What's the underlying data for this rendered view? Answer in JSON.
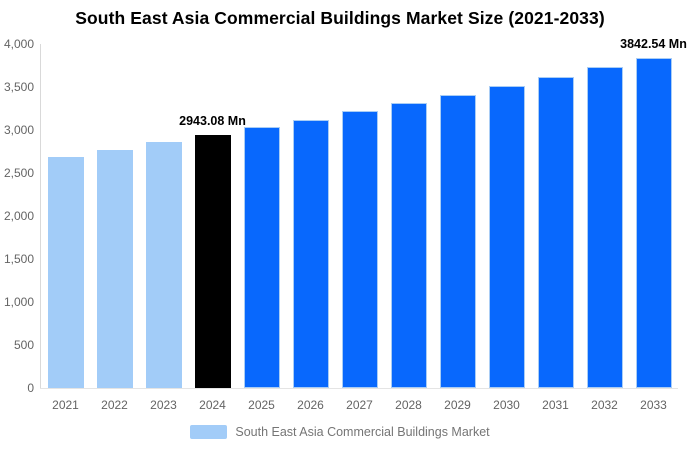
{
  "chart_data": {
    "type": "bar",
    "title": "South East Asia Commercial Buildings Market Size (2021-2033)",
    "categories": [
      "2021",
      "2022",
      "2023",
      "2024",
      "2025",
      "2026",
      "2027",
      "2028",
      "2029",
      "2030",
      "2031",
      "2032",
      "2033"
    ],
    "values": [
      2690,
      2772,
      2856,
      2943.08,
      3031,
      3122,
      3216,
      3312,
      3412,
      3514,
      3620,
      3729,
      3842.54
    ],
    "point_labels": [
      null,
      null,
      null,
      "2943.08 Mn",
      null,
      null,
      null,
      null,
      null,
      null,
      null,
      null,
      "3842.54 Mn"
    ],
    "bar_colors": [
      "#a2ccf8",
      "#a2ccf8",
      "#a2ccf8",
      "#000000",
      "#0868fd",
      "#0868fd",
      "#0868fd",
      "#0868fd",
      "#0868fd",
      "#0868fd",
      "#0868fd",
      "#0868fd",
      "#0868fd"
    ],
    "bar_border_colors": [
      null,
      null,
      null,
      null,
      "#a9cdf5",
      "#a9cdf5",
      "#a9cdf5",
      "#a9cdf5",
      "#a9cdf5",
      "#a9cdf5",
      "#a9cdf5",
      "#a9cdf5",
      "#a9cdf5"
    ],
    "xlabel": "",
    "ylabel": "",
    "ylim": [
      0,
      4000
    ],
    "ytick_step": 500,
    "ytick_labels": [
      "0",
      "500",
      "1,000",
      "1,500",
      "2,000",
      "2,500",
      "3,000",
      "3,500",
      "4,000"
    ],
    "grid": false,
    "legend_position": "bottom",
    "legend": [
      "South East Asia Commercial Buildings Market"
    ],
    "colors": {
      "light_blue_bar": "#a2ccf8",
      "highlight_black_bar": "#000000",
      "bright_blue_bar": "#0868fd",
      "blue_bar_border": "#a9cdf5",
      "axis_line": "#d9d9d9",
      "tick_text": "#646464",
      "legend_text": "#757575",
      "title_text": "#000000",
      "value_label_text": "#000000",
      "background": "#ffffff"
    }
  }
}
